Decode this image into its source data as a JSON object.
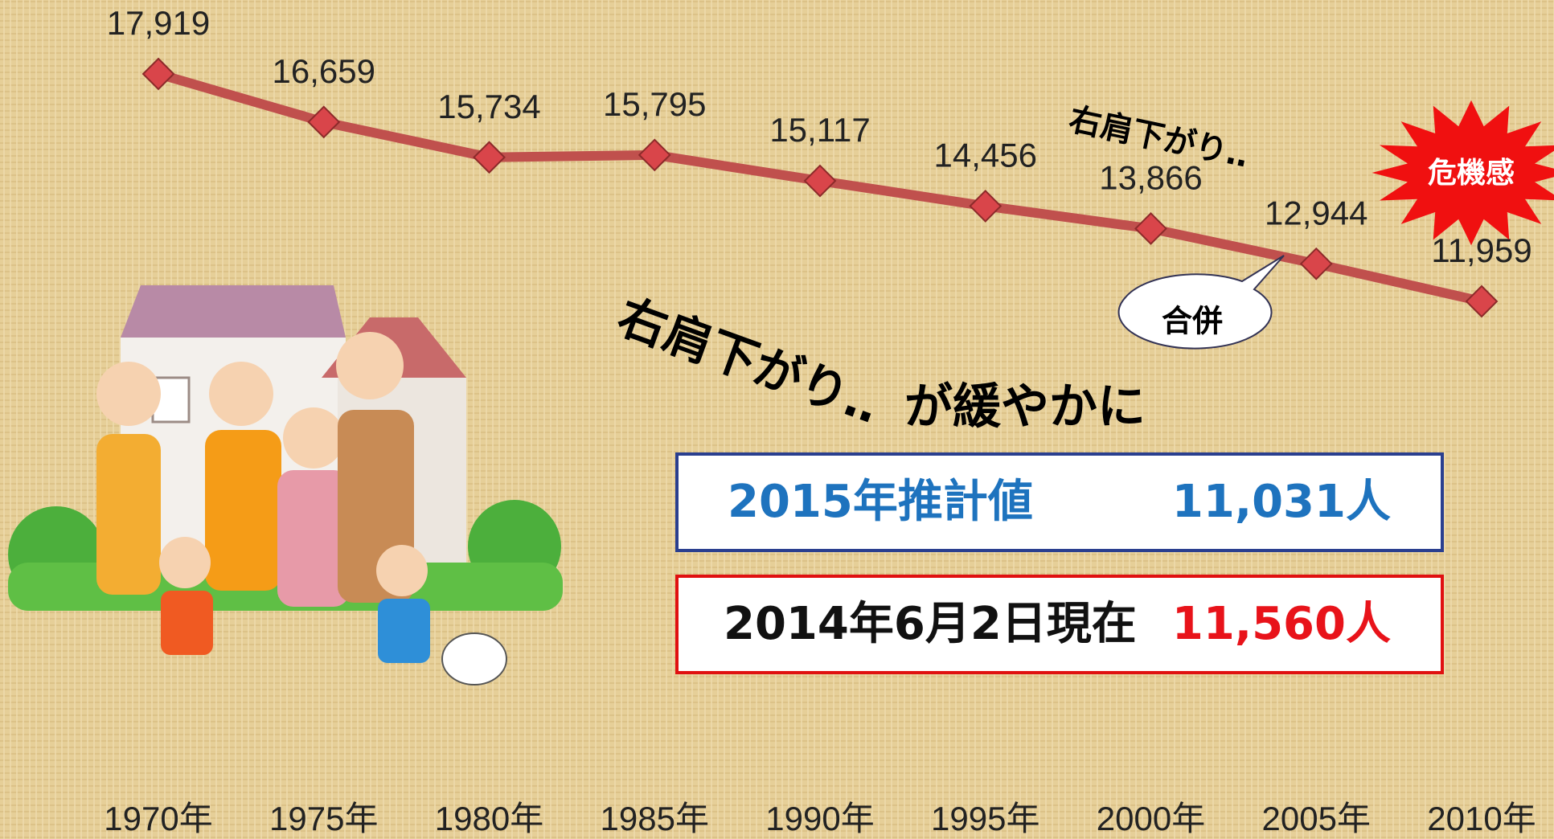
{
  "chart_data": {
    "type": "line",
    "categories": [
      "1970年",
      "1975年",
      "1980年",
      "1985年",
      "1990年",
      "1995年",
      "2000年",
      "2005年",
      "2010年"
    ],
    "values": [
      17919,
      16659,
      15734,
      15795,
      15117,
      14456,
      13866,
      12944,
      11959
    ],
    "value_labels": [
      "17,919",
      "16,659",
      "15,734",
      "15,795",
      "15,117",
      "14,456",
      "13,866",
      "12,944",
      "11,959"
    ],
    "color": "#c0504d",
    "annotations": {
      "trend": "右肩下がり‥",
      "alarm": "危機感",
      "merger": "合併",
      "trend_slow_1": "右肩下がり‥",
      "trend_slow_2": "が緩やかに"
    },
    "callouts": [
      {
        "label": "2015年推計値",
        "value": "11,031人"
      },
      {
        "label": "2014年6月2日現在",
        "value": "11,560人"
      }
    ]
  }
}
